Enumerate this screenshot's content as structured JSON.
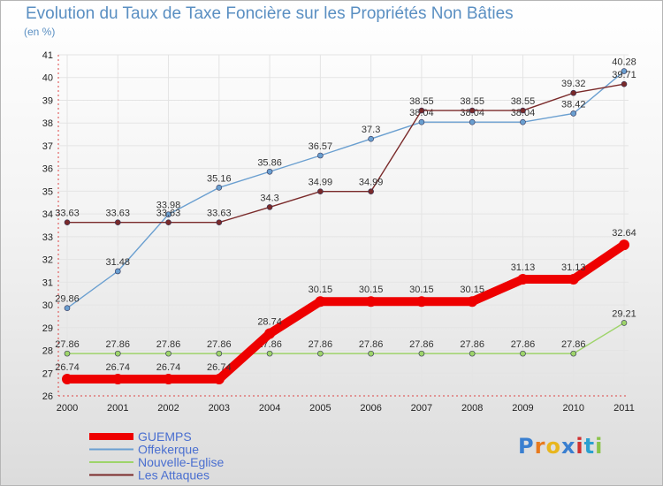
{
  "header": {
    "title": "Evolution du Taux de Taxe Foncière sur les Propriétés Non Bâties",
    "unit": "(en %)"
  },
  "logo": {
    "text": "Proxiti",
    "letters": [
      "P",
      "r",
      "o",
      "x",
      "i",
      "t",
      "i"
    ],
    "colors": [
      "#3a7fd0",
      "#e87a1e",
      "#e8b61e",
      "#3a7fd0",
      "#d03030",
      "#2aa0d0",
      "#8bc34a"
    ]
  },
  "chart_data": {
    "type": "line",
    "title": "Evolution du Taux de Taxe Foncière sur les Propriétés Non Bâties",
    "ylabel": "(en %)",
    "xlabel": "",
    "ylim": [
      26,
      41
    ],
    "yticks": [
      26,
      27,
      28,
      29,
      30,
      31,
      32,
      33,
      34,
      35,
      36,
      37,
      38,
      39,
      40,
      41
    ],
    "categories": [
      "2000",
      "2001",
      "2002",
      "2003",
      "2004",
      "2005",
      "2006",
      "2007",
      "2008",
      "2009",
      "2010",
      "2011"
    ],
    "legend_position": "bottom-left",
    "series": [
      {
        "name": "GUEMPS",
        "color": "#ee0000",
        "width": 10,
        "values": [
          26.74,
          26.74,
          26.74,
          26.74,
          28.74,
          30.15,
          30.15,
          30.15,
          30.15,
          31.13,
          31.13,
          32.64
        ],
        "labels": [
          "26.74",
          "26.74",
          "26.74",
          "26.74",
          "28.74",
          "30.15",
          "30.15",
          "30.15",
          "30.15",
          "31.13",
          "31.13",
          "32.64"
        ]
      },
      {
        "name": "Offekerque",
        "color": "#6a9fd0",
        "width": 1.4,
        "values": [
          29.86,
          31.48,
          33.98,
          35.16,
          35.86,
          36.57,
          37.3,
          38.04,
          38.04,
          38.04,
          38.42,
          40.28
        ],
        "labels": [
          "29.86",
          "31.48",
          "33.98",
          "35.16",
          "35.86",
          "36.57",
          "37.3",
          "38.04",
          "38.04",
          "38.04",
          "38.42",
          "40.28"
        ]
      },
      {
        "name": "Nouvelle-Eglise",
        "color": "#9ed46a",
        "width": 1.4,
        "values": [
          27.86,
          27.86,
          27.86,
          27.86,
          27.86,
          27.86,
          27.86,
          27.86,
          27.86,
          27.86,
          27.86,
          29.21
        ],
        "labels": [
          "27.86",
          "27.86",
          "27.86",
          "27.86",
          "27.86",
          "27.86",
          "27.86",
          "27.86",
          "27.86",
          "27.86",
          "27.86",
          "29.21"
        ]
      },
      {
        "name": "Les Attaques",
        "color": "#7a2a2a",
        "width": 1.4,
        "values": [
          33.63,
          33.63,
          33.63,
          33.63,
          34.3,
          34.99,
          34.99,
          38.55,
          38.55,
          38.55,
          39.32,
          39.71
        ],
        "labels": [
          "33.63",
          "33.63",
          "33.63",
          "33.63",
          "34.3",
          "34.99",
          "34.99",
          "38.55",
          "38.55",
          "38.55",
          "39.32",
          "39.71"
        ]
      }
    ]
  }
}
